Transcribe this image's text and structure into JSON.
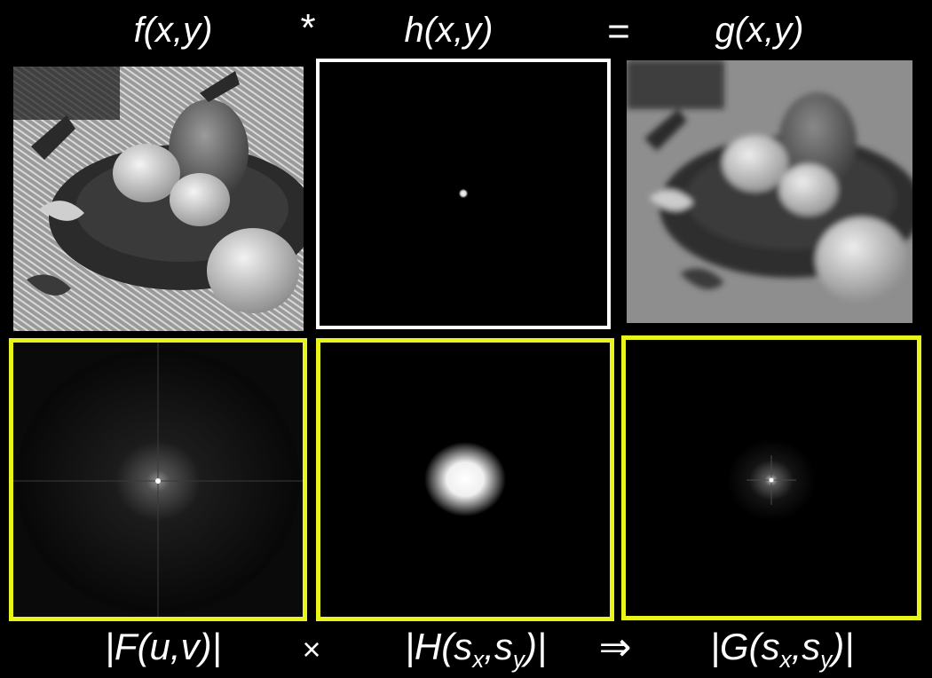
{
  "top_row": {
    "f_label": "f(x,y)",
    "conv_op": "*",
    "h_label": "h(x,y)",
    "equals_op": "=",
    "g_label": "g(x,y)"
  },
  "bottom_row": {
    "F_label": "|F(u,v)|",
    "mult_op": "×",
    "H_label": {
      "pre": "|H(s",
      "sx": "x",
      "mid": ",s",
      "sy": "y",
      "post": ")|"
    },
    "implies_op": "⇒",
    "G_label": {
      "pre": "|G(s",
      "sx": "x",
      "mid": ",s",
      "sy": "y",
      "post": ")|"
    }
  },
  "colors": {
    "background": "#000000",
    "text": "#ffffff",
    "spectrum_frame": "#e9f51a",
    "kernel_frame": "#ffffff"
  }
}
